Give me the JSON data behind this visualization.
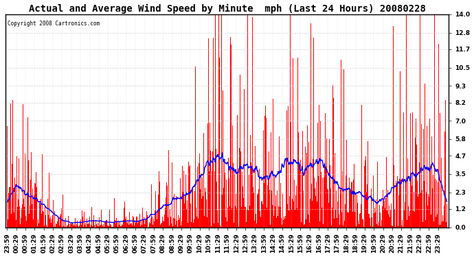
{
  "title": "Actual and Average Wind Speed by Minute  mph (Last 24 Hours) 20080228",
  "copyright": "Copyright 2008 Cartronics.com",
  "yticks": [
    0.0,
    1.2,
    2.3,
    3.5,
    4.7,
    5.8,
    7.0,
    8.2,
    9.3,
    10.5,
    11.7,
    12.8,
    14.0
  ],
  "ylim": [
    0.0,
    14.0
  ],
  "bar_color": "#FF0000",
  "line_color": "#0000FF",
  "background_color": "#FFFFFF",
  "grid_color": "#C8C8C8",
  "title_fontsize": 10,
  "tick_fontsize": 6.5,
  "n_minutes": 1440,
  "avg_window": 60
}
